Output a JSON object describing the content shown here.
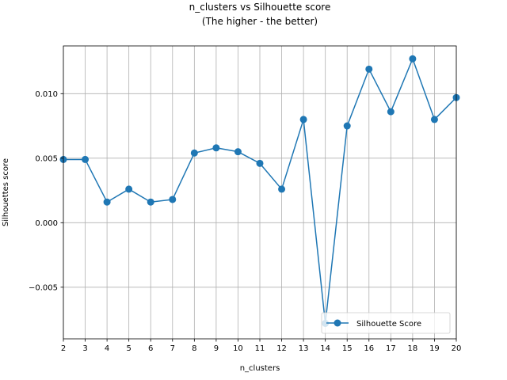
{
  "chart_data": {
    "type": "line",
    "title_line1": "n_clusters vs Silhouette score",
    "title_line2": "(The higher - the better)",
    "xlabel": "n_clusters",
    "ylabel": "Silhouettes score",
    "xlim": [
      2,
      20
    ],
    "ylim": [
      -0.009,
      0.0137
    ],
    "grid": true,
    "legend_position": "lower right",
    "x": [
      2,
      3,
      4,
      5,
      6,
      7,
      8,
      9,
      10,
      11,
      12,
      13,
      14,
      15,
      16,
      17,
      18,
      19,
      20
    ],
    "x_tick_labels": [
      "2",
      "3",
      "4",
      "5",
      "6",
      "7",
      "8",
      "9",
      "10",
      "11",
      "12",
      "13",
      "14",
      "15",
      "16",
      "17",
      "18",
      "19",
      "20"
    ],
    "y_ticks": [
      -0.005,
      0.0,
      0.005,
      0.01
    ],
    "y_tick_labels": [
      "−0.005",
      "0.000",
      "0.005",
      "0.010"
    ],
    "series": [
      {
        "name": "Silhouette Score",
        "color": "#1f77b4",
        "marker": "circle",
        "values": [
          0.0049,
          0.0049,
          0.0016,
          0.0026,
          0.0016,
          0.0018,
          0.0054,
          0.0058,
          0.0055,
          0.0046,
          0.0026,
          0.008,
          -0.0078,
          0.0075,
          0.0119,
          0.0086,
          0.0127,
          0.008,
          0.0097
        ]
      }
    ]
  }
}
